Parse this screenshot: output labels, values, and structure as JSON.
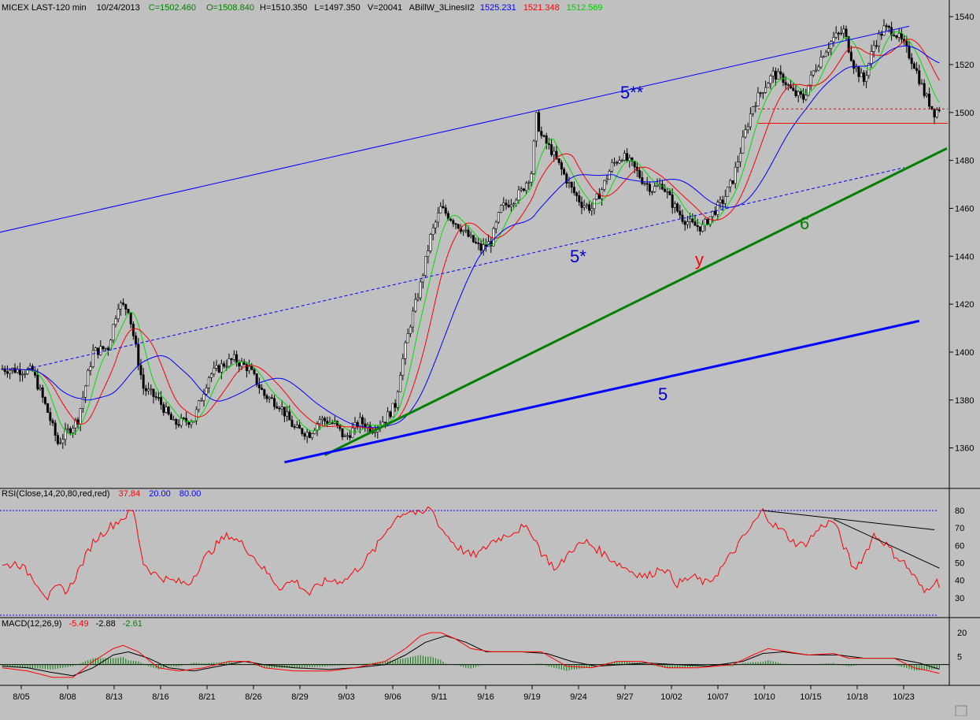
{
  "price_header": {
    "symbol": "MICEX LAST-120 min",
    "date": "10/24/2013",
    "close": "C=1502.460",
    "open": "O=1508.840",
    "high": "H=1510.350",
    "low": "L=1497.350",
    "volume": "V=20041",
    "study": "ABillW_3LinesII2",
    "ma_values": [
      "1525.231",
      "1521.348",
      "1512.569"
    ]
  },
  "rsi_header": {
    "label": "RSI(Close,14,20,80,red,red)",
    "value": "37.84",
    "lower": "20.00",
    "upper": "80.00"
  },
  "macd_header": {
    "label": "MACD(12,26,9)",
    "macd": "-5.49",
    "signal": "-2.88",
    "hist": "-2.61"
  },
  "annotations": {
    "wave_5_double_star": "5**",
    "wave_5_star": "5*",
    "wave_6": "6",
    "wave_5": "5",
    "wave_y": "y"
  },
  "colors": {
    "background": "#c0c0c0",
    "blue": "#0000ff",
    "red": "#ff0000",
    "green": "#008000",
    "lime": "#00dd00",
    "black": "#000000",
    "dark_blue": "#0000cc"
  },
  "chart_data": [
    {
      "type": "candlestick",
      "title": "MICEX LAST-120 min",
      "x_ticks": [
        "8/05",
        "8/08",
        "8/13",
        "8/16",
        "8/21",
        "8/26",
        "8/29",
        "9/03",
        "9/06",
        "9/11",
        "9/16",
        "9/19",
        "9/24",
        "9/27",
        "10/02",
        "10/07",
        "10/10",
        "10/15",
        "10/18",
        "10/23"
      ],
      "ylim": [
        1350,
        1543
      ],
      "y_ticks": [
        1360,
        1380,
        1400,
        1420,
        1440,
        1460,
        1480,
        1500,
        1520,
        1540
      ],
      "close_path": [
        [
          0,
          1393
        ],
        [
          12,
          1392
        ],
        [
          18,
          1375
        ],
        [
          22,
          1362
        ],
        [
          30,
          1372
        ],
        [
          36,
          1400
        ],
        [
          42,
          1402
        ],
        [
          46,
          1420
        ],
        [
          50,
          1418
        ],
        [
          56,
          1385
        ],
        [
          62,
          1380
        ],
        [
          68,
          1370
        ],
        [
          76,
          1372
        ],
        [
          82,
          1390
        ],
        [
          88,
          1395
        ],
        [
          92,
          1397
        ],
        [
          98,
          1393
        ],
        [
          104,
          1382
        ],
        [
          110,
          1378
        ],
        [
          116,
          1368
        ],
        [
          122,
          1366
        ],
        [
          126,
          1372
        ],
        [
          132,
          1370
        ],
        [
          136,
          1364
        ],
        [
          142,
          1371
        ],
        [
          147,
          1368
        ],
        [
          152,
          1372
        ],
        [
          156,
          1378
        ],
        [
          158,
          1392
        ],
        [
          162,
          1412
        ],
        [
          166,
          1428
        ],
        [
          170,
          1448
        ],
        [
          174,
          1460
        ],
        [
          178,
          1456
        ],
        [
          182,
          1452
        ],
        [
          186,
          1447
        ],
        [
          190,
          1443
        ],
        [
          194,
          1446
        ],
        [
          198,
          1460
        ],
        [
          202,
          1463
        ],
        [
          206,
          1467
        ],
        [
          210,
          1475
        ],
        [
          212,
          1498
        ],
        [
          214,
          1490
        ],
        [
          218,
          1484
        ],
        [
          222,
          1476
        ],
        [
          226,
          1468
        ],
        [
          230,
          1462
        ],
        [
          234,
          1460
        ],
        [
          238,
          1468
        ],
        [
          242,
          1478
        ],
        [
          246,
          1482
        ],
        [
          250,
          1478
        ],
        [
          254,
          1472
        ],
        [
          258,
          1468
        ],
        [
          262,
          1470
        ],
        [
          266,
          1462
        ],
        [
          270,
          1456
        ],
        [
          274,
          1453
        ],
        [
          278,
          1452
        ],
        [
          282,
          1458
        ],
        [
          286,
          1463
        ],
        [
          290,
          1472
        ],
        [
          294,
          1488
        ],
        [
          298,
          1503
        ],
        [
          302,
          1510
        ],
        [
          306,
          1516
        ],
        [
          310,
          1514
        ],
        [
          314,
          1508
        ],
        [
          318,
          1506
        ],
        [
          322,
          1517
        ],
        [
          326,
          1525
        ],
        [
          330,
          1531
        ],
        [
          334,
          1534
        ],
        [
          338,
          1520
        ],
        [
          342,
          1513
        ],
        [
          346,
          1528
        ],
        [
          350,
          1535
        ],
        [
          354,
          1534
        ],
        [
          358,
          1528
        ],
        [
          362,
          1520
        ],
        [
          366,
          1508
        ],
        [
          370,
          1500
        ],
        [
          372,
          1502
        ]
      ],
      "spread_per_bar": 4.2,
      "bar_count": 373,
      "moving_averages": [
        {
          "color": "green",
          "period": 8,
          "value": "1512.569"
        },
        {
          "color": "red",
          "period": 16,
          "value": "1521.348"
        },
        {
          "color": "blue",
          "period": 32,
          "value": "1525.231"
        }
      ],
      "trendlines": [
        {
          "label": "5**",
          "color": "blue",
          "style": "solid",
          "points": [
            [
              -1,
              1450
            ],
            [
              360,
              1536
            ]
          ]
        },
        {
          "label": "5*",
          "color": "blue",
          "style": "dashed",
          "points": [
            [
              10,
              1393
            ],
            [
              358,
              1477
            ]
          ]
        },
        {
          "label": "6",
          "color": "green",
          "style": "solid",
          "points": [
            [
              128,
              1357
            ],
            [
              375,
              1485
            ]
          ]
        },
        {
          "label": "5",
          "color": "blue",
          "style": "solid",
          "points": [
            [
              112,
              1354
            ],
            [
              364,
              1413
            ]
          ]
        }
      ],
      "horizontal_levels": [
        {
          "value": 1501.5,
          "color": "red",
          "style": "dotted",
          "from_bar": 300
        },
        {
          "value": 1495.5,
          "color": "red",
          "style": "solid",
          "from_bar": 300
        }
      ]
    },
    {
      "type": "line",
      "title": "RSI(Close,14,20,80,red,red)",
      "ylim": [
        20,
        85
      ],
      "y_ticks": [
        30,
        40,
        50,
        60,
        70,
        80
      ],
      "levels": [
        20,
        80
      ],
      "series": [
        {
          "name": "RSI",
          "color": "red",
          "values": [
            [
              0,
              48
            ],
            [
              6,
              50
            ],
            [
              12,
              42
            ],
            [
              18,
              30
            ],
            [
              22,
              36
            ],
            [
              26,
              34
            ],
            [
              30,
              45
            ],
            [
              36,
              62
            ],
            [
              42,
              70
            ],
            [
              48,
              76
            ],
            [
              52,
              80
            ],
            [
              56,
              50
            ],
            [
              60,
              44
            ],
            [
              66,
              40
            ],
            [
              74,
              38
            ],
            [
              80,
              52
            ],
            [
              86,
              62
            ],
            [
              90,
              66
            ],
            [
              96,
              60
            ],
            [
              104,
              46
            ],
            [
              110,
              36
            ],
            [
              116,
              40
            ],
            [
              122,
              32
            ],
            [
              126,
              38
            ],
            [
              130,
              40
            ],
            [
              136,
              40
            ],
            [
              142,
              48
            ],
            [
              148,
              58
            ],
            [
              154,
              72
            ],
            [
              158,
              78
            ],
            [
              162,
              80
            ],
            [
              166,
              77
            ],
            [
              170,
              82
            ],
            [
              174,
              70
            ],
            [
              180,
              60
            ],
            [
              186,
              54
            ],
            [
              190,
              56
            ],
            [
              194,
              62
            ],
            [
              200,
              66
            ],
            [
              206,
              70
            ],
            [
              210,
              68
            ],
            [
              214,
              56
            ],
            [
              220,
              46
            ],
            [
              226,
              58
            ],
            [
              232,
              62
            ],
            [
              238,
              56
            ],
            [
              244,
              50
            ],
            [
              250,
              45
            ],
            [
              256,
              42
            ],
            [
              262,
              48
            ],
            [
              268,
              38
            ],
            [
              274,
              42
            ],
            [
              280,
              38
            ],
            [
              286,
              48
            ],
            [
              292,
              60
            ],
            [
              298,
              72
            ],
            [
              302,
              80
            ],
            [
              306,
              72
            ],
            [
              310,
              68
            ],
            [
              314,
              62
            ],
            [
              318,
              60
            ],
            [
              322,
              66
            ],
            [
              326,
              72
            ],
            [
              330,
              74
            ],
            [
              334,
              60
            ],
            [
              338,
              46
            ],
            [
              342,
              54
            ],
            [
              346,
              66
            ],
            [
              350,
              62
            ],
            [
              354,
              55
            ],
            [
              358,
              50
            ],
            [
              362,
              42
            ],
            [
              366,
              33
            ],
            [
              370,
              40
            ],
            [
              372,
              38
            ]
          ]
        }
      ],
      "trendlines": [
        {
          "color": "black",
          "points": [
            [
              302,
              80
            ],
            [
              370,
              69
            ]
          ]
        },
        {
          "color": "black",
          "points": [
            [
              330,
              75
            ],
            [
              372,
              47
            ]
          ]
        }
      ]
    },
    {
      "type": "macd",
      "title": "MACD(12,26,9)",
      "ylim": [
        -12,
        24
      ],
      "y_ticks": [
        5,
        20
      ],
      "zero_line": 0,
      "series": [
        {
          "name": "MACD",
          "color": "red",
          "values": [
            [
              0,
              -2
            ],
            [
              10,
              -4
            ],
            [
              20,
              -8
            ],
            [
              28,
              -8
            ],
            [
              36,
              2
            ],
            [
              44,
              10
            ],
            [
              48,
              12
            ],
            [
              54,
              8
            ],
            [
              62,
              -2
            ],
            [
              70,
              -4
            ],
            [
              80,
              -2
            ],
            [
              90,
              2
            ],
            [
              98,
              2
            ],
            [
              104,
              -2
            ],
            [
              116,
              -4
            ],
            [
              130,
              -4
            ],
            [
              140,
              -2
            ],
            [
              152,
              2
            ],
            [
              160,
              10
            ],
            [
              166,
              18
            ],
            [
              170,
              20
            ],
            [
              174,
              20
            ],
            [
              180,
              16
            ],
            [
              186,
              10
            ],
            [
              194,
              8
            ],
            [
              206,
              8
            ],
            [
              214,
              8
            ],
            [
              224,
              -1
            ],
            [
              234,
              -2
            ],
            [
              244,
              2
            ],
            [
              254,
              2
            ],
            [
              264,
              -2
            ],
            [
              276,
              -2
            ],
            [
              290,
              0
            ],
            [
              298,
              6
            ],
            [
              304,
              10
            ],
            [
              312,
              8
            ],
            [
              320,
              6
            ],
            [
              330,
              7
            ],
            [
              336,
              4
            ],
            [
              344,
              4
            ],
            [
              354,
              4
            ],
            [
              362,
              -2
            ],
            [
              368,
              -4
            ],
            [
              372,
              -5.49
            ]
          ]
        },
        {
          "name": "Signal",
          "color": "black",
          "values": [
            [
              0,
              -1
            ],
            [
              10,
              -2
            ],
            [
              20,
              -5
            ],
            [
              28,
              -7
            ],
            [
              36,
              -2
            ],
            [
              44,
              6
            ],
            [
              50,
              8
            ],
            [
              58,
              4
            ],
            [
              66,
              -2
            ],
            [
              76,
              -4
            ],
            [
              86,
              -1
            ],
            [
              96,
              2
            ],
            [
              104,
              0
            ],
            [
              116,
              -2
            ],
            [
              130,
              -3
            ],
            [
              140,
              -2
            ],
            [
              152,
              0
            ],
            [
              160,
              6
            ],
            [
              168,
              14
            ],
            [
              176,
              18
            ],
            [
              184,
              14
            ],
            [
              192,
              8
            ],
            [
              206,
              8
            ],
            [
              216,
              7
            ],
            [
              226,
              2
            ],
            [
              236,
              -1
            ],
            [
              246,
              0
            ],
            [
              256,
              1
            ],
            [
              268,
              0
            ],
            [
              280,
              -1
            ],
            [
              294,
              2
            ],
            [
              302,
              7
            ],
            [
              310,
              8
            ],
            [
              320,
              6
            ],
            [
              332,
              6
            ],
            [
              342,
              4
            ],
            [
              354,
              4
            ],
            [
              364,
              1
            ],
            [
              372,
              -2.88
            ]
          ]
        }
      ],
      "histogram_color": "green"
    }
  ]
}
